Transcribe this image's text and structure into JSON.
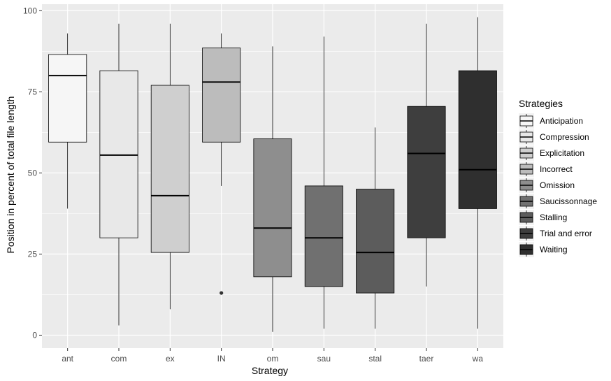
{
  "chart_data": {
    "type": "boxplot",
    "xlabel": "Strategy",
    "ylabel": "Position in percent of total file length",
    "ylim": [
      -4,
      102
    ],
    "yticks": [
      0,
      25,
      50,
      75,
      100
    ],
    "grid": true,
    "legend": {
      "title": "Strategies",
      "placement": "right",
      "entries": [
        "Anticipation",
        "Compression",
        "Explicitation",
        "Incorrect",
        "Omission",
        "Saucissonnage",
        "Stalling",
        "Trial and error",
        "Waiting"
      ]
    },
    "categories": [
      "ant",
      "com",
      "ex",
      "IN",
      "om",
      "sau",
      "stal",
      "taer",
      "wa"
    ],
    "boxes": [
      {
        "min": 39,
        "q1": 59.5,
        "median": 80,
        "q3": 86.5,
        "max": 93,
        "outliers": []
      },
      {
        "min": 3,
        "q1": 30,
        "median": 55.5,
        "q3": 81.5,
        "max": 96,
        "outliers": []
      },
      {
        "min": 8,
        "q1": 25.5,
        "median": 43,
        "q3": 77,
        "max": 96,
        "outliers": []
      },
      {
        "min": 46,
        "q1": 59.5,
        "median": 78,
        "q3": 88.5,
        "max": 93,
        "outliers": [
          13
        ]
      },
      {
        "min": 1,
        "q1": 18,
        "median": 33,
        "q3": 60.5,
        "max": 89,
        "outliers": []
      },
      {
        "min": 2,
        "q1": 15,
        "median": 30,
        "q3": 46,
        "max": 92,
        "outliers": []
      },
      {
        "min": 2,
        "q1": 13,
        "median": 25.5,
        "q3": 45,
        "max": 64,
        "outliers": []
      },
      {
        "min": 15,
        "q1": 30,
        "median": 56,
        "q3": 70.5,
        "max": 96,
        "outliers": []
      },
      {
        "min": 2,
        "q1": 39,
        "median": 51,
        "q3": 81.5,
        "max": 98,
        "outliers": []
      }
    ],
    "fill_colors": [
      "#f6f6f6",
      "#e8e8e8",
      "#cfcfcf",
      "#bcbcbc",
      "#8e8e8e",
      "#707070",
      "#5c5c5c",
      "#3e3e3e",
      "#2f2f2f"
    ],
    "panel_background": "#ebebeb",
    "grid_color": "#ffffff"
  }
}
